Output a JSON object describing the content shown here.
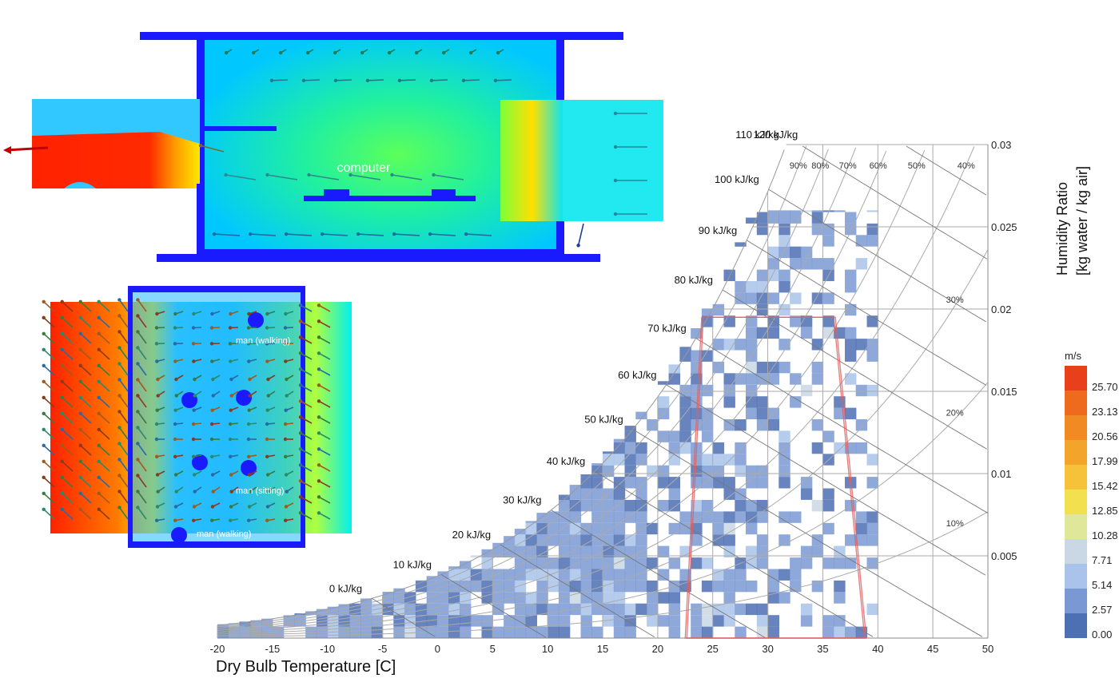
{
  "cfd_top": {
    "label": "computer",
    "colors": {
      "hot": "#ff1a00",
      "warm": "#ffd600",
      "mid": "#3dff5a",
      "cool": "#00e5ff",
      "wall": "#1a1aff"
    }
  },
  "cfd_bottom": {
    "labels": [
      "man (walking)",
      "man (sitting)",
      "man (walking)"
    ]
  },
  "chart_data": {
    "type": "heatmap",
    "xlabel": "Dry Bulb Temperature [C]",
    "ylabel": "Humidity Ratio [kg water / kg air]",
    "xlim": [
      -20,
      50
    ],
    "ylim": [
      0,
      0.03
    ],
    "x_ticks": [
      "-20",
      "-15",
      "-10",
      "-5",
      "0",
      "5",
      "10",
      "15",
      "20",
      "25",
      "30",
      "35",
      "40",
      "45",
      "50"
    ],
    "y_ticks": [
      "0.03",
      "0.025",
      "0.02",
      "0.015",
      "0.01",
      "0.005"
    ],
    "y_tick_values": [
      0.03,
      0.025,
      0.02,
      0.015,
      0.01,
      0.005
    ],
    "enthalpy_labels": [
      "0 kJ/kg",
      "10 kJ/kg",
      "20 kJ/kg",
      "30 kJ/kg",
      "40 kJ/kg",
      "50 kJ/kg",
      "60 kJ/kg",
      "70 kJ/kg",
      "80 kJ/kg",
      "90 kJ/kg",
      "100 kJ/kg",
      "110 kJ/kg",
      "120 kJ/kg"
    ],
    "enthalpy_values": [
      0,
      10,
      20,
      30,
      40,
      50,
      60,
      70,
      80,
      90,
      100,
      110,
      120
    ],
    "rh_labels": [
      "90%",
      "80%",
      "70%",
      "60%",
      "50%",
      "40%",
      "30%",
      "20%",
      "10%"
    ],
    "rh_values": [
      0.9,
      0.8,
      0.7,
      0.6,
      0.5,
      0.4,
      0.3,
      0.2,
      0.1
    ],
    "comfort_zone": {
      "color": "#e06060",
      "t_low_bottom": 22.5,
      "t_high_bottom": 38.8,
      "t_low_top": 24,
      "t_high_top": 36,
      "w_top": 0.0195
    },
    "legend": {
      "title": "m/s",
      "labels": [
        "25.70",
        "23.13",
        "20.56",
        "17.99",
        "15.42",
        "12.85",
        "10.28",
        "7.71",
        "5.14",
        "2.57",
        "0.00"
      ],
      "colors": [
        "#e8401a",
        "#ee6a1d",
        "#f18a22",
        "#f3a52b",
        "#f5c23a",
        "#f3e04f",
        "#dfe79a",
        "#c9d8e4",
        "#a9c3ea",
        "#7a99d4",
        "#4d6fb3"
      ]
    }
  }
}
